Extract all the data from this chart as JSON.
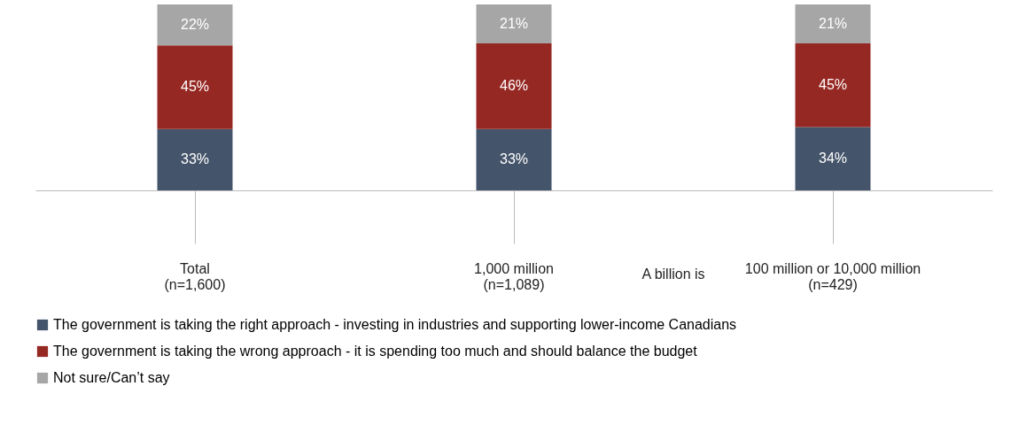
{
  "chart_data": {
    "type": "bar",
    "stacked": true,
    "categories": [
      "Total\n(n=1,600)",
      "1,000 million\n(n=1,089)",
      "100 million or 10,000 million\n(n=429)"
    ],
    "series": [
      {
        "name": "The government is taking the right approach - investing in industries and supporting lower-income Canadians",
        "color": "#44546a",
        "values": [
          33,
          33,
          34
        ],
        "value_labels": [
          "33%",
          "33%",
          "34%"
        ]
      },
      {
        "name": "The government is taking the wrong approach - it is spending too much and should balance the budget",
        "color": "#962823",
        "values": [
          45,
          46,
          45
        ],
        "value_labels": [
          "45%",
          "46%",
          "45%"
        ]
      },
      {
        "name": "Not sure/Can’t say",
        "color": "#a6a6a6",
        "values": [
          22,
          21,
          21
        ],
        "value_labels": [
          "22%",
          "21%",
          "21%"
        ]
      }
    ],
    "annotations": [
      "A billion is"
    ],
    "legend": "bottom left",
    "grid": false
  }
}
